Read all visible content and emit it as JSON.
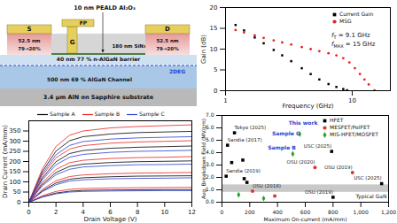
{
  "diagram": {
    "layers": [
      "3.4 µm AlN on Sapphire substrate",
      "500 nm 69 % AlGaN Channel",
      "40 nm 77 % n-AlGaN barrier"
    ],
    "channel_label": "2DEG",
    "contacts": {
      "source": "S",
      "drain": "D",
      "gate": "G",
      "field_plate": "FP"
    },
    "regrowth": {
      "thickness": "52.5 nm",
      "grading": "79→20%"
    },
    "passivation": "180 nm SiNx",
    "dielectric": "10 nm PEALD Al₂O₃"
  },
  "chart_data": [
    {
      "type": "scatter",
      "xlabel": "Frequency (GHz)",
      "ylabel": "Gain (dB)",
      "log": "x",
      "xlim": [
        1,
        20
      ],
      "xticks": [
        1,
        10
      ],
      "ylim": [
        0,
        20
      ],
      "yticks": [
        0,
        5,
        10,
        15,
        20
      ],
      "legend": "top-right",
      "series": [
        {
          "name": "Current Gain",
          "color": "#000000",
          "marker": "square",
          "x": [
            1.2,
            1.4,
            1.7,
            2,
            2.4,
            2.8,
            3.3,
            4,
            4.7,
            5.5,
            6.5,
            7.5,
            8.5,
            9.1
          ],
          "values": [
            15.8,
            14.5,
            12.8,
            11.4,
            9.8,
            8.5,
            7.1,
            5.4,
            4.0,
            2.7,
            1.6,
            0.9,
            0.4,
            0.1
          ]
        },
        {
          "name": "MSG",
          "color": "#e8231f",
          "marker": "circle",
          "x": [
            1.2,
            1.4,
            1.7,
            2,
            2.4,
            2.8,
            3.3,
            4,
            4.7,
            5.5,
            6.5,
            7.5,
            8.5,
            9.5,
            10.5,
            11.5,
            12.5,
            13.5,
            15
          ],
          "values": [
            14.6,
            14.0,
            13.3,
            12.7,
            12.1,
            11.6,
            11.1,
            10.5,
            10.0,
            9.5,
            9.0,
            8.5,
            7.8,
            6.8,
            5.4,
            4.0,
            2.7,
            1.5,
            0.1
          ]
        }
      ],
      "annotations": [
        {
          "symbol": "f",
          "subscript": "T",
          "text": " = 9.1 GHz"
        },
        {
          "symbol": "f",
          "subscript": "MAX",
          "text": " = 15 GHz"
        }
      ]
    },
    {
      "type": "line",
      "xlabel": "Drain Voltage (V)",
      "ylabel": "Drain Current (mA/mm)",
      "xlim": [
        0,
        12
      ],
      "xticks": [
        0,
        2,
        4,
        6,
        8,
        10,
        12
      ],
      "ylim": [
        0,
        400
      ],
      "yticks": [
        0,
        50,
        100,
        150,
        200,
        250,
        300,
        350
      ],
      "legend": "top",
      "x": [
        0,
        1,
        2,
        3,
        4,
        6,
        8,
        10,
        12
      ],
      "series": [
        {
          "name": "Sample A",
          "color": "#000000",
          "curves": [
            [
              0,
              151,
              251,
              302,
              322,
              335,
              342,
              345,
              348
            ],
            [
              0,
              119,
              199,
              239,
              254,
              265,
              270,
              273,
              276
            ],
            [
              0,
              88,
              146,
              176,
              187,
              195,
              199,
              201,
              203
            ],
            [
              0,
              56,
              94,
              113,
              120,
              125,
              128,
              129,
              130
            ],
            [
              0,
              27,
              45,
              54,
              58,
              60,
              61,
              62,
              62
            ]
          ]
        },
        {
          "name": "Sample B",
          "color": "#e8231f",
          "curves": [
            [
              0,
              164,
              274,
              329,
              350,
              365,
              372,
              376,
              380
            ],
            [
              0,
              131,
              218,
              261,
              278,
              290,
              296,
              299,
              302
            ],
            [
              0,
              97,
              161,
              194,
              206,
              215,
              219,
              221,
              224
            ],
            [
              0,
              63,
              105,
              126,
              134,
              140,
              143,
              144,
              146
            ],
            [
              0,
              32,
              53,
              63,
              67,
              70,
              71,
              72,
              73
            ]
          ]
        },
        {
          "name": "Sample C",
          "color": "#2a3fd0",
          "curves": [
            [
              0,
              140,
              233,
              279,
              298,
              310,
              316,
              319,
              322
            ],
            [
              0,
              110,
              184,
              221,
              235,
              245,
              250,
              252,
              255
            ],
            [
              0,
              81,
              135,
              162,
              173,
              180,
              184,
              185,
              187
            ],
            [
              0,
              52,
              86,
              104,
              110,
              115,
              117,
              118,
              120
            ],
            [
              0,
              25,
              41,
              50,
              53,
              55,
              56,
              57,
              57
            ]
          ]
        }
      ]
    },
    {
      "type": "scatter",
      "xlabel": "Maximum On-current (mA/mm)",
      "ylabel": "Avg. Breakdown Field (MV/cm)",
      "xlim": [
        0,
        1200
      ],
      "xticks": [
        0,
        200,
        400,
        600,
        800,
        1000,
        1200
      ],
      "ylim": [
        0,
        7
      ],
      "yticks": [
        0,
        1,
        2,
        3,
        4,
        5,
        6,
        7
      ],
      "legend": "top-right",
      "series": [
        {
          "name": "HFET",
          "color": "#000000",
          "marker": "square",
          "x": [
            90,
            40,
            70,
            150,
            30,
            160,
            180,
            790,
            1150,
            800
          ],
          "values": [
            5.6,
            4.6,
            3.2,
            3.4,
            2.1,
            1.9,
            1.6,
            4.1,
            1.5,
            0.4
          ],
          "labels": [
            "Tokyo (2025)",
            "Sandia (2017)",
            null,
            null,
            "Sandia (2019)",
            null,
            null,
            "USC (2025)",
            "USC (2025)",
            "OSU (2019)"
          ]
        },
        {
          "name": "MESFET/PolFET",
          "color": "#e03030",
          "marker": "circle",
          "x": [
            670,
            940,
            220,
            380
          ],
          "values": [
            2.8,
            2.4,
            0.9,
            0.5
          ],
          "labels": [
            "OSU (2020)",
            "OSU (2019)",
            "OSU (2018)",
            null
          ]
        },
        {
          "name": "MIS-HFET/MOSFET",
          "color": "#2ca02c",
          "marker": "diamond",
          "x": [
            560,
            510,
            120,
            300
          ],
          "values": [
            5.5,
            3.9,
            0.6,
            0.3
          ]
        }
      ],
      "band": {
        "label": "Typical GaN",
        "range": [
          0.8,
          1.4
        ]
      },
      "annotations": [
        {
          "text": "This work",
          "x": 480,
          "y": 6.4,
          "color": "#2a3fd0"
        },
        {
          "text": "Sample C",
          "x": 360,
          "y": 5.5,
          "color": "#2a3fd0"
        },
        {
          "text": "Sample B",
          "x": 330,
          "y": 4.4,
          "color": "#2a3fd0"
        }
      ]
    }
  ]
}
